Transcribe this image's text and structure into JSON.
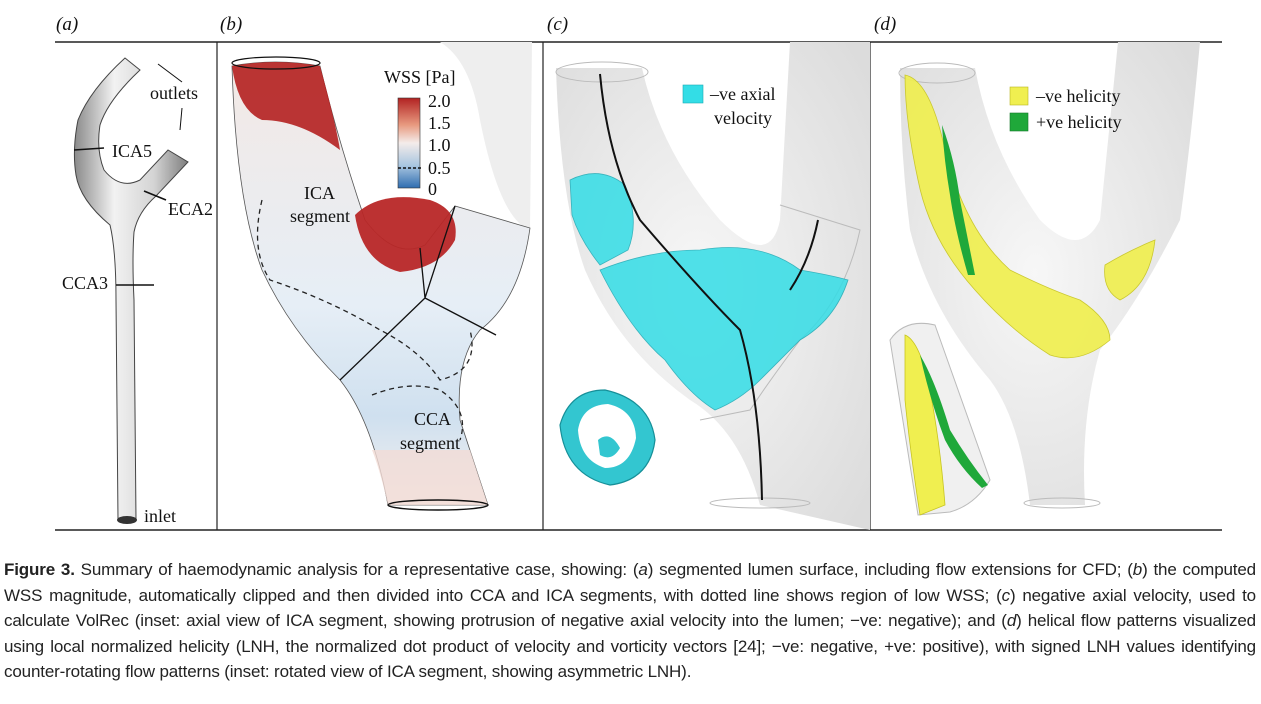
{
  "panels": {
    "a": {
      "label": "(a)",
      "annotations": {
        "outlets": "outlets",
        "ica5": "ICA5",
        "eca2": "ECA2",
        "cca3": "CCA3",
        "inlet": "inlet"
      }
    },
    "b": {
      "label": "(b)",
      "legend_title": "WSS [Pa]",
      "legend_ticks": [
        "2.0",
        "1.5",
        "1.0",
        "0.5",
        "0"
      ],
      "ica_label_line1": "ICA",
      "ica_label_line2": "segment",
      "cca_label_line1": "CCA",
      "cca_label_line2": "segment"
    },
    "c": {
      "label": "(c)",
      "legend_line1": "–ve axial",
      "legend_line2": "velocity",
      "legend_color": "#33dde6"
    },
    "d": {
      "label": "(d)",
      "legend_neg": "–ve helicity",
      "legend_pos": "+ve helicity",
      "neg_color": "#f0ef50",
      "pos_color": "#1fa83a"
    }
  },
  "caption": {
    "lead": "Figure 3.",
    "text_1": "Summary of haemodynamic analysis for a representative case, showing: (",
    "a": "a",
    "text_2": ") segmented lumen surface, including flow extensions for CFD; (",
    "b": "b",
    "text_3": ") the computed WSS magnitude, automatically clipped and then divided into CCA and ICA segments, with dotted line shows region of low WSS; (",
    "c": "c",
    "text_4": ") negative axial velocity, used to calculate VolRec (inset: axial view of ICA segment, showing protrusion of negative axial velocity into the lumen; −ve: negative); and (",
    "d": "d",
    "text_5": ") helical flow patterns visualized using local normalized helicity (LNH, the normalized dot product of velocity and vorticity vectors [24]; −ve: negative, +ve: positive), with signed LNH values identifying counter-rotating flow patterns (inset: rotated view of ICA segment, showing asymmetric LNH)."
  }
}
